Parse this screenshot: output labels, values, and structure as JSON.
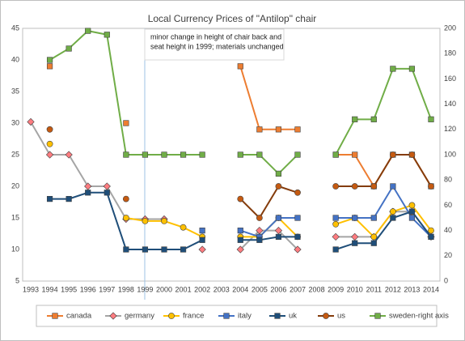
{
  "chart_data": {
    "type": "line",
    "title": "Local Currency Prices  of \"Antilop\" chair",
    "annotation": [
      "minor change in height of chair back and",
      "seat height in 1999; materials unchanged"
    ],
    "categories": [
      "1993",
      "1994",
      "1995",
      "1996",
      "1997",
      "1998",
      "1999",
      "2000",
      "2001",
      "2002",
      "2003",
      "2004",
      "2005",
      "2006",
      "2007",
      "2008",
      "2009",
      "2010",
      "2011",
      "2012",
      "2013",
      "2014"
    ],
    "ylim": [
      5,
      45
    ],
    "yticks": [
      5,
      10,
      15,
      20,
      25,
      30,
      35,
      40,
      45
    ],
    "y2lim": [
      0,
      200
    ],
    "y2ticks": [
      0,
      20,
      40,
      60,
      80,
      100,
      120,
      140,
      160,
      180,
      200
    ],
    "grid": false,
    "series": [
      {
        "name": "canada",
        "color": "#ED7D31",
        "marker": "square",
        "values": [
          null,
          39,
          null,
          null,
          null,
          30,
          null,
          null,
          null,
          null,
          null,
          39,
          29,
          29,
          29,
          null,
          25,
          25,
          20,
          25,
          25,
          20
        ]
      },
      {
        "name": "germany",
        "color": "#A5A5A5",
        "marker_color": "#FF7C80",
        "marker": "diamond",
        "values": [
          30.2,
          25,
          25,
          20,
          20,
          14.8,
          14.8,
          14.8,
          null,
          10,
          null,
          10,
          13,
          13,
          10,
          null,
          12,
          12,
          12,
          16,
          16,
          12
        ]
      },
      {
        "name": "france",
        "color": "#FFC000",
        "marker": "circle",
        "values": [
          null,
          26.7,
          null,
          null,
          null,
          15,
          14.5,
          14.5,
          13.5,
          12,
          null,
          12,
          12,
          15,
          12,
          null,
          14,
          15,
          12,
          16,
          17,
          13
        ]
      },
      {
        "name": "italy",
        "color": "#4472C4",
        "marker": "square",
        "values": [
          null,
          null,
          null,
          null,
          null,
          null,
          null,
          null,
          null,
          13,
          null,
          13,
          12,
          15,
          15,
          null,
          15,
          15,
          15,
          20,
          15,
          12
        ]
      },
      {
        "name": "uk",
        "color": "#1F4E79",
        "marker": "square",
        "values": [
          null,
          18,
          18,
          19,
          19,
          10,
          10,
          10,
          10,
          11.5,
          null,
          11.5,
          11.5,
          12,
          12,
          null,
          10,
          11,
          11,
          15,
          16,
          12
        ]
      },
      {
        "name": "us",
        "color": "#843C0C",
        "marker_color": "#C55A11",
        "marker": "circle",
        "values": [
          null,
          29,
          null,
          null,
          null,
          18,
          null,
          null,
          null,
          null,
          null,
          18,
          15,
          20,
          19,
          null,
          20,
          20,
          20,
          25,
          25,
          20
        ]
      },
      {
        "name": "sweden-right axis",
        "color": "#70AD47",
        "marker": "square",
        "axis": "y2",
        "values": [
          null,
          175,
          184,
          198,
          195,
          100,
          100,
          100,
          100,
          100,
          null,
          100,
          100,
          85,
          100,
          null,
          100,
          128,
          128,
          168,
          168,
          128
        ]
      }
    ]
  }
}
